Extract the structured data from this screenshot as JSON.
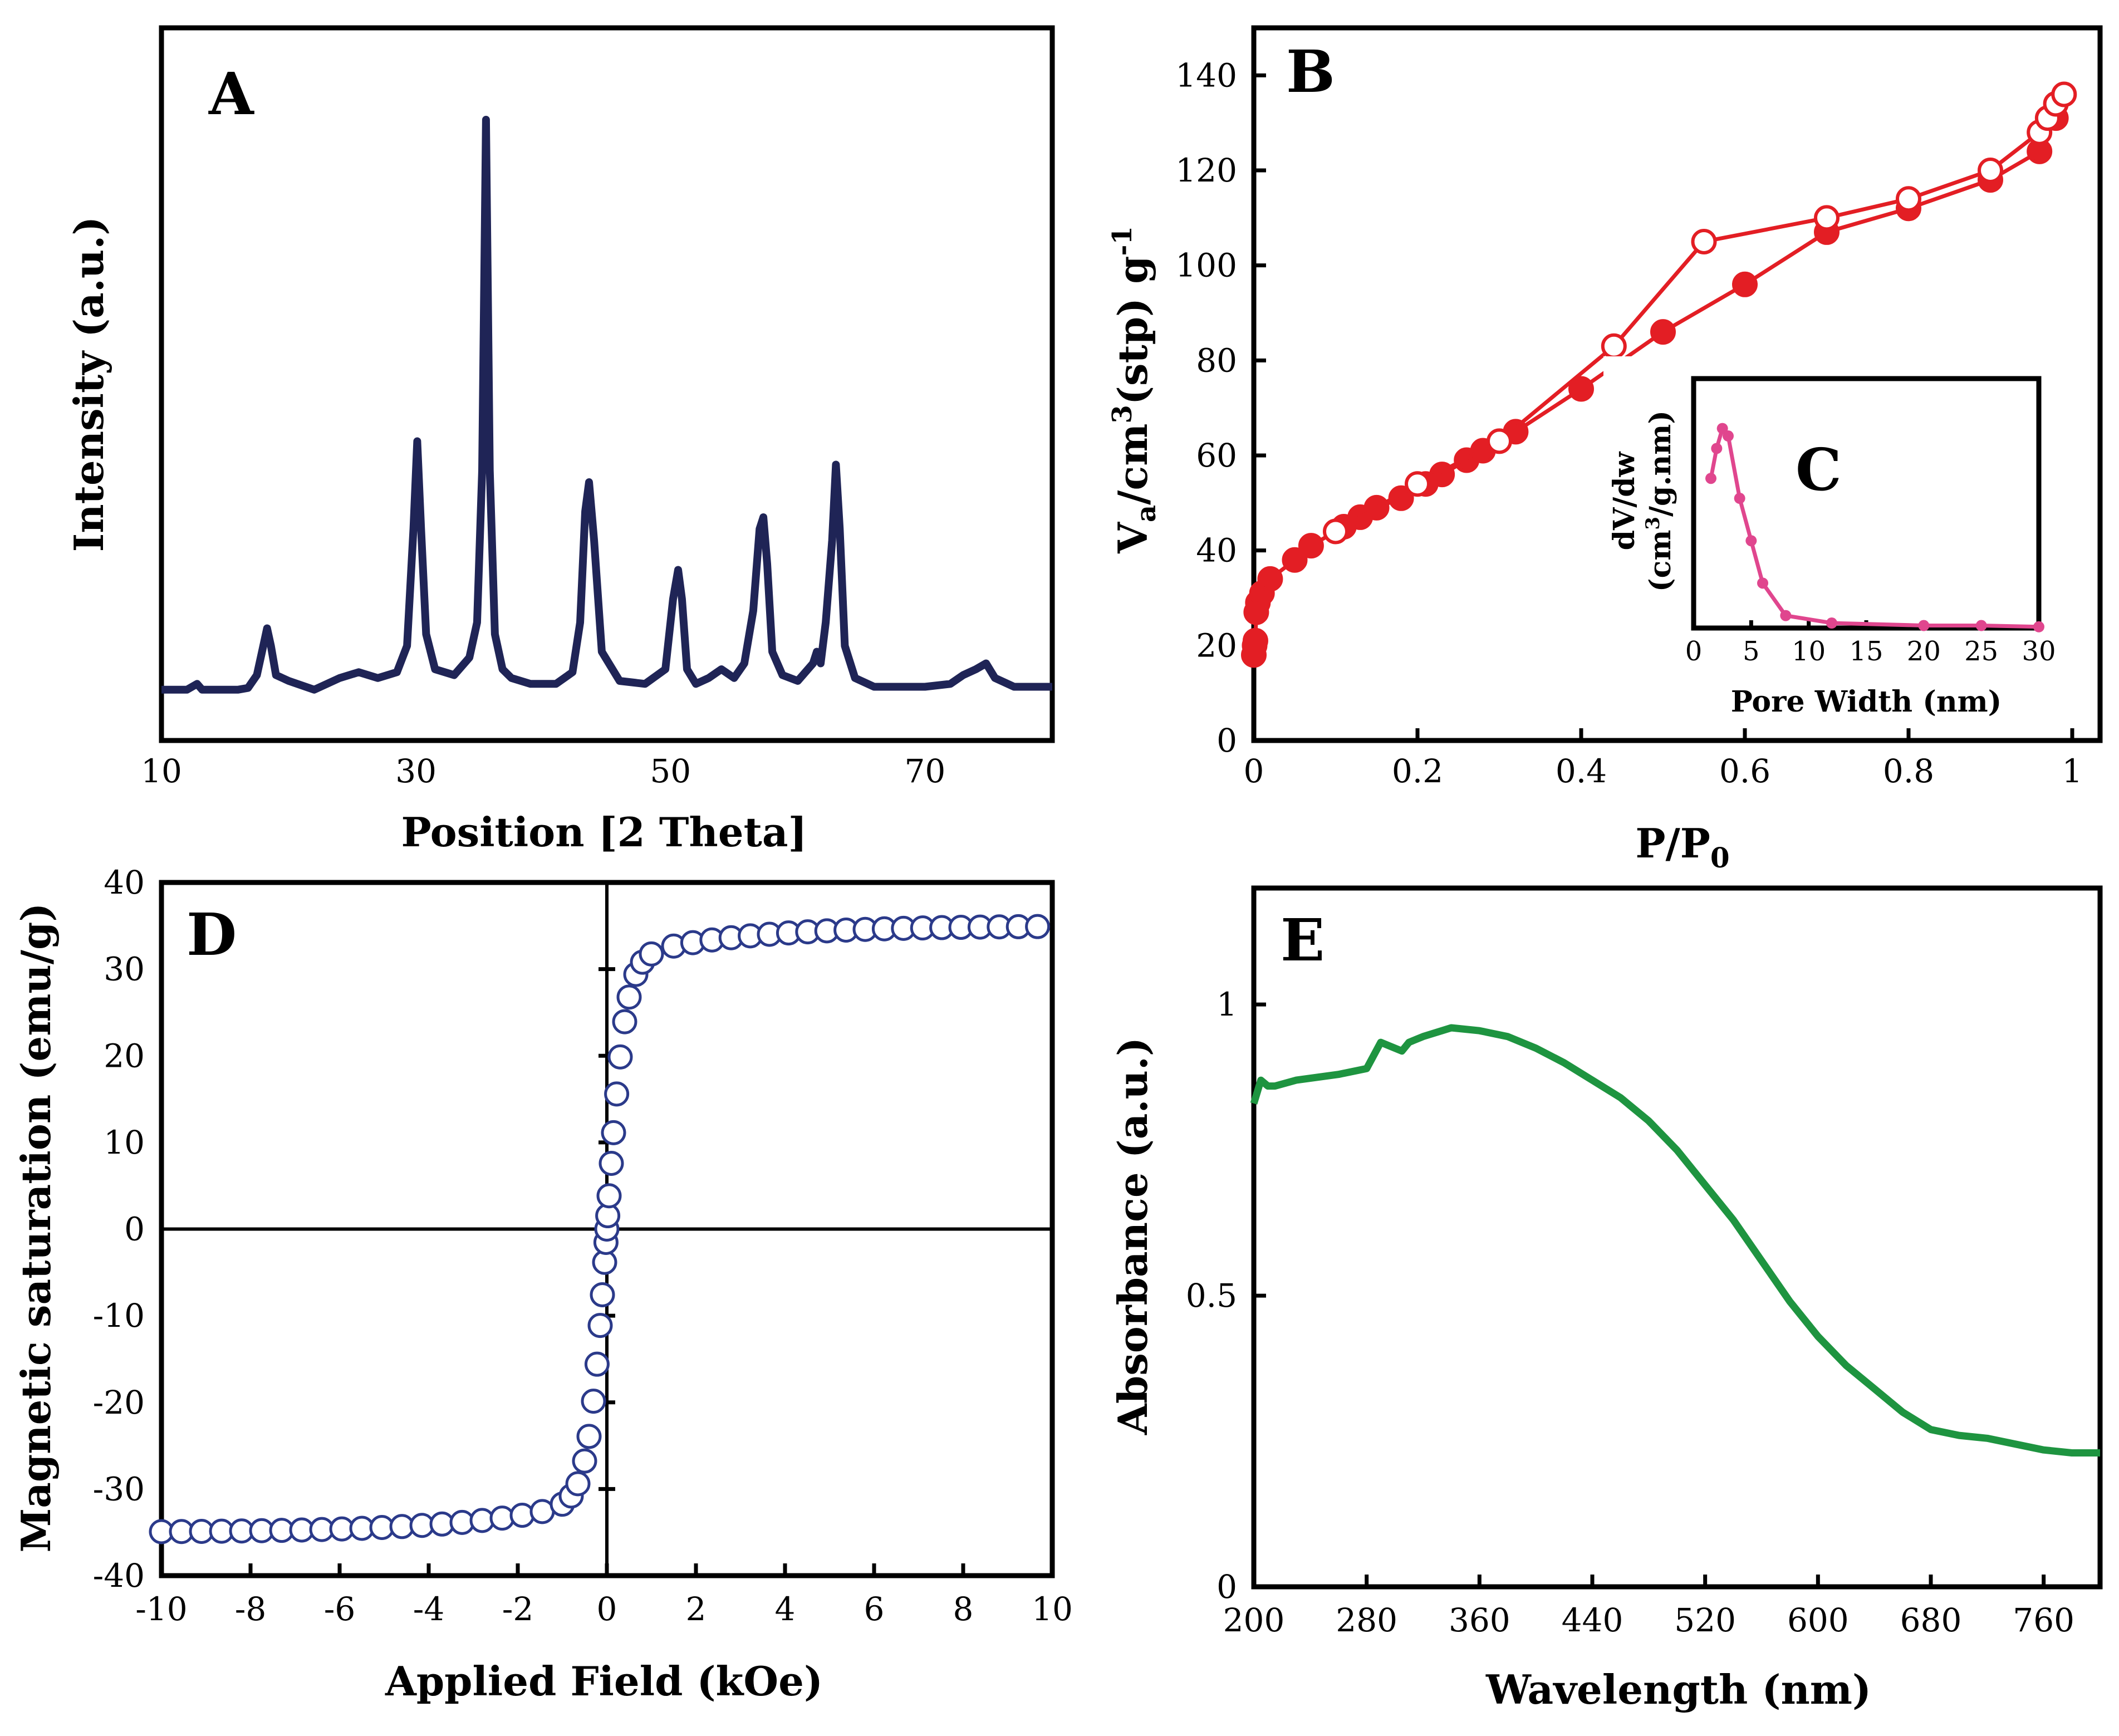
{
  "chart_data": [
    {
      "id": "A",
      "type": "line",
      "panel_label": "A",
      "xlabel": "Position [2 Theta]",
      "ylabel": "Intensity (a.u.)",
      "xlim": [
        10,
        80
      ],
      "ylim": [
        0,
        100
      ],
      "xticks": [
        "10",
        "30",
        "50",
        "70"
      ],
      "color": "#1f2456",
      "x": [
        10,
        12,
        12.8,
        13.2,
        14,
        16,
        16.8,
        17.5,
        18,
        18.3,
        18.6,
        19,
        20,
        22,
        24,
        25.5,
        27,
        28.5,
        29.3,
        29.8,
        30.1,
        30.4,
        30.8,
        31.5,
        33,
        34.2,
        34.8,
        35.2,
        35.5,
        35.8,
        36.2,
        36.8,
        37.5,
        39,
        41,
        42.3,
        42.9,
        43.3,
        43.6,
        44,
        44.6,
        46,
        48,
        49.6,
        50.2,
        50.6,
        50.9,
        51.3,
        52,
        53,
        54,
        55,
        55.8,
        56.5,
        57,
        57.3,
        57.6,
        58,
        58.8,
        60,
        61.2,
        61.5,
        61.8,
        62.2,
        62.7,
        63,
        63.3,
        63.7,
        64.5,
        66,
        68,
        70,
        72,
        73,
        74,
        74.8,
        75.5,
        77,
        80
      ],
      "y": [
        2.5,
        2.5,
        3.5,
        2.5,
        2.5,
        2.5,
        2.8,
        5,
        10,
        13,
        10,
        5,
        4,
        2.5,
        4.5,
        5.5,
        4.5,
        5.5,
        10,
        30,
        45,
        30,
        12,
        6,
        5,
        8,
        14,
        40,
        100,
        40,
        12,
        6,
        4.5,
        3.5,
        3.5,
        5.5,
        14,
        33,
        38,
        28,
        9,
        4,
        3.5,
        6,
        18,
        23,
        18,
        6,
        3.5,
        4.5,
        6,
        4.5,
        7,
        16,
        30,
        32,
        24,
        9,
        5,
        4,
        7,
        9,
        7,
        14,
        28,
        41,
        30,
        10,
        4.5,
        3,
        3,
        3,
        3.5,
        5,
        6,
        7,
        4.5,
        3,
        3
      ]
    },
    {
      "id": "B",
      "type": "scatter",
      "panel_label": "B",
      "xlabel": "P/P0",
      "ylabel": "Va/cm3(stp) g-1",
      "xlim": [
        0,
        1
      ],
      "ylim": [
        0,
        150
      ],
      "xticks": [
        "0",
        "0.2",
        "0.4",
        "0.6",
        "0.8",
        "1"
      ],
      "yticks": [
        "0",
        "20",
        "40",
        "60",
        "80",
        "100",
        "120",
        "140"
      ],
      "color": "#e31e24",
      "series": [
        {
          "name": "adsorption",
          "marker": "filled",
          "x": [
            0,
            0.001,
            0.002,
            0.003,
            0.005,
            0.01,
            0.02,
            0.05,
            0.07,
            0.11,
            0.13,
            0.15,
            0.18,
            0.21,
            0.23,
            0.26,
            0.28,
            0.32,
            0.4,
            0.5,
            0.6,
            0.7,
            0.8,
            0.9,
            0.96,
            0.98
          ],
          "y": [
            18,
            20,
            21,
            27,
            29,
            31,
            34,
            38,
            41,
            45,
            47,
            49,
            51,
            54,
            56,
            59,
            61,
            65,
            74,
            86,
            96,
            107,
            112,
            118,
            124,
            131
          ]
        },
        {
          "name": "desorption",
          "marker": "open",
          "x": [
            0.1,
            0.2,
            0.3,
            0.44,
            0.55,
            0.7,
            0.8,
            0.9,
            0.96,
            0.97,
            0.98,
            0.99
          ],
          "y": [
            44,
            54,
            63,
            83,
            105,
            110,
            114,
            120,
            128,
            131,
            134,
            136
          ]
        }
      ]
    },
    {
      "id": "C",
      "type": "line",
      "panel_label": "C",
      "inset_of": "B",
      "xlabel": "Pore Width (nm)",
      "ylabel_line1": "dV/dw",
      "ylabel_line2": "(cm3/g.nm)",
      "xlim": [
        0,
        30
      ],
      "ylim": [
        0,
        1
      ],
      "xticks": [
        "0",
        "5",
        "10",
        "15",
        "20",
        "25",
        "30"
      ],
      "color": "#e0468e",
      "x": [
        1.5,
        2,
        2.5,
        3,
        4,
        5,
        6,
        8,
        12,
        20,
        25,
        30
      ],
      "y": [
        0.6,
        0.72,
        0.8,
        0.77,
        0.52,
        0.35,
        0.18,
        0.05,
        0.02,
        0.01,
        0.01,
        0.005
      ]
    },
    {
      "id": "D",
      "type": "scatter",
      "panel_label": "D",
      "xlabel": "Applied Field (kOe)",
      "ylabel": "Magnetic saturation (emu/g)",
      "xlim": [
        -10,
        10
      ],
      "ylim": [
        -40,
        40
      ],
      "xticks": [
        "-10",
        "-8",
        "-6",
        "-4",
        "-2",
        "0",
        "2",
        "4",
        "6",
        "8",
        "10"
      ],
      "yticks": [
        "-40",
        "-30",
        "-20",
        "-10",
        "0",
        "10",
        "20",
        "30",
        "40"
      ],
      "color": "#2b3a8a",
      "ms": 35,
      "h0": 0.4
    },
    {
      "id": "E",
      "type": "line",
      "panel_label": "E",
      "xlabel": "Wavelength (nm)",
      "ylabel": "Absorbance (a.u.)",
      "xlim": [
        200,
        800
      ],
      "ylim": [
        0,
        1.2
      ],
      "xticks": [
        "200",
        "280",
        "360",
        "440",
        "520",
        "600",
        "680",
        "760"
      ],
      "yticks": [
        "0",
        "0.5",
        "1"
      ],
      "color": "#1e9440",
      "x": [
        200,
        205,
        210,
        215,
        230,
        260,
        280,
        290,
        295,
        305,
        310,
        320,
        340,
        360,
        380,
        400,
        420,
        440,
        460,
        480,
        500,
        520,
        540,
        560,
        580,
        600,
        620,
        640,
        660,
        680,
        700,
        720,
        740,
        760,
        780,
        800
      ],
      "y": [
        0.83,
        0.87,
        0.86,
        0.86,
        0.87,
        0.88,
        0.89,
        0.935,
        0.93,
        0.92,
        0.935,
        0.945,
        0.96,
        0.955,
        0.945,
        0.925,
        0.9,
        0.87,
        0.84,
        0.8,
        0.75,
        0.69,
        0.63,
        0.56,
        0.49,
        0.43,
        0.38,
        0.34,
        0.3,
        0.27,
        0.26,
        0.255,
        0.245,
        0.235,
        0.23,
        0.23
      ]
    }
  ]
}
